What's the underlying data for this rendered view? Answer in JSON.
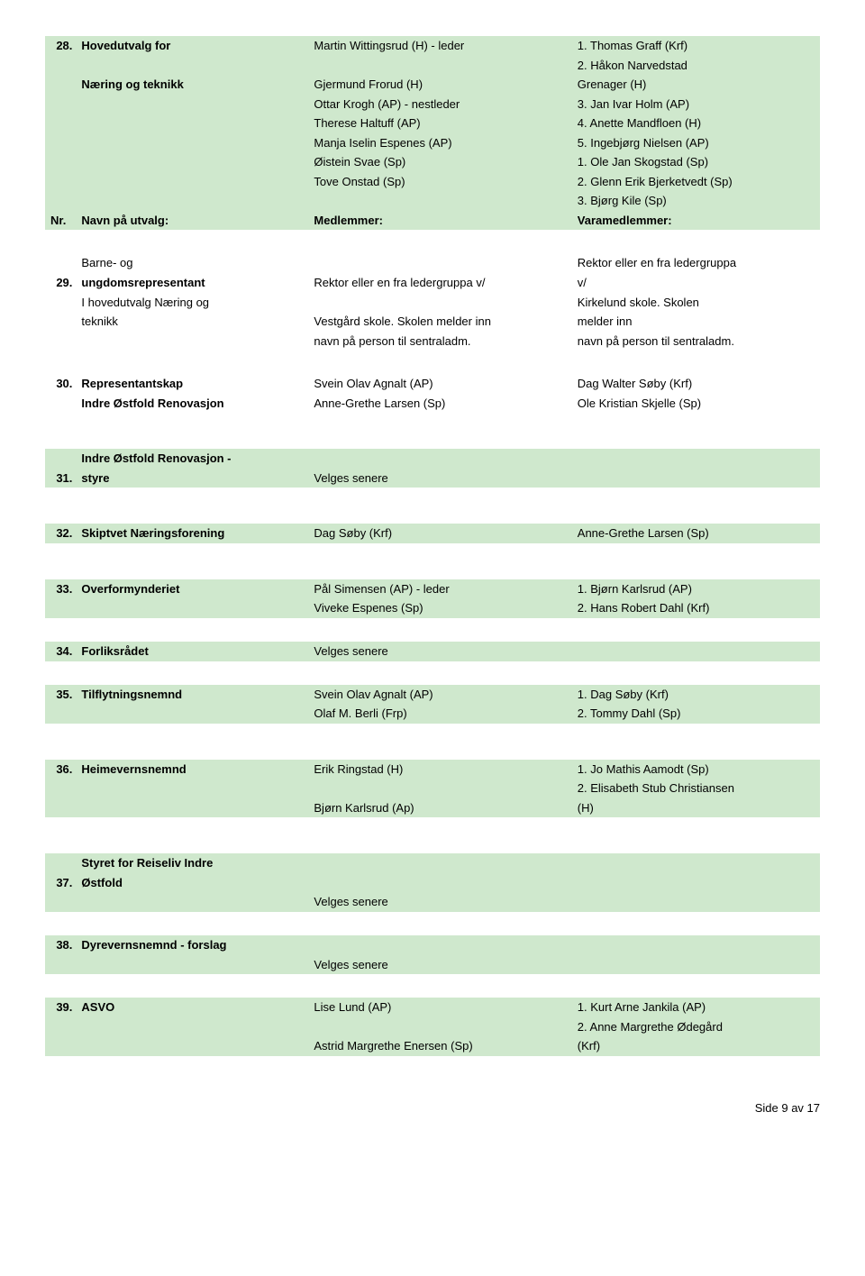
{
  "row28": {
    "num": "28.",
    "title_l1": "Hovedutvalg for",
    "title_l2": "Næring og teknikk",
    "members": [
      "Martin Wittingsrud (H) - leder",
      "",
      "Gjermund Frorud (H)",
      "Ottar Krogh (AP) - nestleder",
      "Therese Haltuff (AP)",
      "Manja Iselin Espenes (AP)",
      "Øistein Svae (Sp)",
      "Tove Onstad (Sp)"
    ],
    "varamembers": [
      "1. Thomas Graff (Krf)",
      "2. Håkon Narvedstad",
      "Grenager (H)",
      "3. Jan Ivar Holm (AP)",
      "4. Anette Mandfloen (H)",
      "5. Ingebjørg Nielsen (AP)",
      "1. Ole Jan Skogstad (Sp)",
      "2. Glenn Erik Bjerketvedt (Sp)",
      "3. Bjørg Kile (Sp)"
    ]
  },
  "header": {
    "nr": "Nr.",
    "navn": "Navn på utvalg:",
    "med": "Medlemmer:",
    "vara": "Varamedlemmer:"
  },
  "row29": {
    "num": "29.",
    "title_l1": "Barne- og",
    "title_l2": "ungdomsrepresentant",
    "title_l3": "I hovedutvalg Næring og",
    "title_l4": "teknikk",
    "members": [
      "",
      "Rektor eller en fra ledergruppa v/",
      "",
      "Vestgård skole. Skolen melder inn",
      "navn på person til sentraladm."
    ],
    "varamembers": [
      "Rektor eller en fra ledergruppa",
      "v/",
      "Kirkelund skole. Skolen",
      "melder inn",
      "navn på person til sentraladm."
    ]
  },
  "row30": {
    "num": "30.",
    "title_l1": "Representantskap",
    "title_l2": "Indre Østfold Renovasjon",
    "members": [
      "Svein Olav Agnalt (AP)",
      "Anne-Grethe Larsen (Sp)"
    ],
    "varamembers": [
      "Dag Walter Søby (Krf)",
      "Ole Kristian Skjelle (Sp)"
    ]
  },
  "row31": {
    "num": "31.",
    "title_l1": "Indre Østfold Renovasjon -",
    "title_l2": "styre",
    "member": "Velges senere"
  },
  "row32": {
    "num": "32.",
    "title": "Skiptvet Næringsforening",
    "member": "Dag Søby (Krf)",
    "vara": "Anne-Grethe Larsen (Sp)"
  },
  "row33": {
    "num": "33.",
    "title": "Overformynderiet",
    "members": [
      "Pål Simensen (AP) - leder",
      "Viveke Espenes (Sp)"
    ],
    "varamembers": [
      "1. Bjørn Karlsrud (AP)",
      "2. Hans Robert Dahl (Krf)"
    ]
  },
  "row34": {
    "num": "34.",
    "title": "Forliksrådet",
    "member": "Velges senere"
  },
  "row35": {
    "num": "35.",
    "title": "Tilflytningsnemnd",
    "members": [
      "Svein Olav Agnalt (AP)",
      "Olaf M. Berli (Frp)"
    ],
    "varamembers": [
      "1. Dag Søby (Krf)",
      "2. Tommy Dahl (Sp)"
    ]
  },
  "row36": {
    "num": "36.",
    "title": "Heimevernsnemnd",
    "members": [
      "Erik Ringstad (H)",
      "",
      "Bjørn Karlsrud (Ap)"
    ],
    "varamembers": [
      "1. Jo Mathis Aamodt (Sp)",
      "2. Elisabeth Stub Christiansen",
      "(H)"
    ]
  },
  "row37": {
    "num": "37.",
    "title_l1": "Styret for Reiseliv Indre",
    "title_l2": "Østfold",
    "member": "Velges senere"
  },
  "row38": {
    "num": "38.",
    "title": "Dyrevernsnemnd - forslag",
    "member": "Velges senere"
  },
  "row39": {
    "num": "39.",
    "title": "ASVO",
    "members": [
      "Lise Lund (AP)",
      "",
      "Astrid Margrethe Enersen (Sp)"
    ],
    "varamembers": [
      "1. Kurt Arne Jankila (AP)",
      "2. Anne Margrethe Ødegård",
      "(Krf)"
    ]
  },
  "footer": "Side 9 av 17"
}
